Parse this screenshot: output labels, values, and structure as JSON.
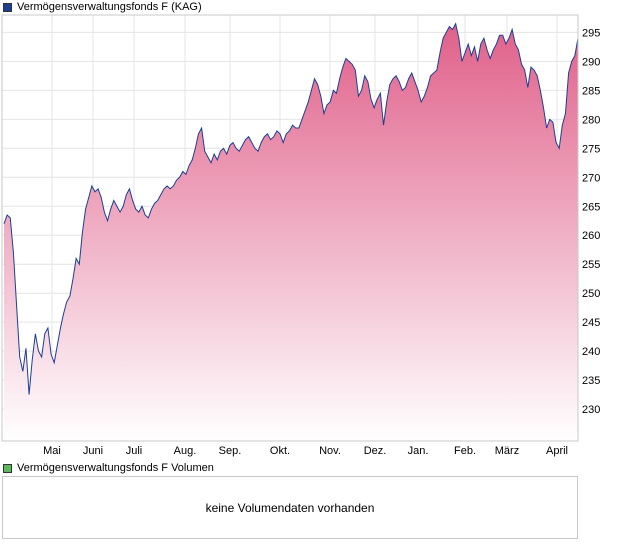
{
  "legend": {
    "price_label": "Vermögensverwaltungsfonds F (KAG)",
    "price_color": "#1c3f94",
    "volume_label": "Vermögensverwaltungsfonds F Volumen",
    "volume_color": "#5cb85c"
  },
  "volume_panel": {
    "message": "keine Volumendaten vorhanden"
  },
  "chart_data": {
    "type": "area",
    "ylim": [
      224.5,
      298
    ],
    "y_ticks": [
      230,
      235,
      240,
      245,
      250,
      255,
      260,
      265,
      270,
      275,
      280,
      285,
      290,
      295
    ],
    "x_ticks": [
      "Mai",
      "Juni",
      "Juli",
      "Aug.",
      "Sep.",
      "Okt.",
      "Nov.",
      "Dez.",
      "Jan.",
      "Feb.",
      "März",
      "April"
    ],
    "line_color": "#1c3f94",
    "fill_top_color": "#e0608a",
    "fill_bottom_color": "#ffffff",
    "grid": true,
    "series": [
      {
        "values": [
          262.0,
          263.5,
          263.0,
          257.0,
          248.0,
          239.0,
          236.5,
          240.5,
          232.5,
          238.5,
          243.0,
          240.0,
          239.0,
          243.0,
          244.0,
          239.5,
          238.0,
          241.0,
          244.0,
          246.5,
          248.5,
          249.5,
          252.5,
          256.0,
          255.0,
          260.5,
          264.5,
          266.5,
          268.5,
          267.5,
          268.0,
          266.5,
          264.0,
          262.5,
          264.5,
          266.0,
          265.0,
          264.0,
          265.0,
          267.0,
          268.0,
          266.0,
          264.5,
          264.0,
          265.0,
          263.5,
          263.0,
          264.5,
          265.5,
          266.0,
          267.0,
          268.0,
          268.5,
          268.0,
          268.5,
          269.5,
          270.0,
          271.0,
          270.5,
          272.0,
          273.0,
          275.0,
          277.5,
          278.5,
          274.5,
          273.5,
          272.5,
          274.0,
          273.0,
          274.5,
          275.0,
          274.0,
          275.5,
          276.0,
          275.0,
          274.5,
          275.5,
          276.5,
          277.0,
          276.0,
          275.0,
          274.5,
          276.0,
          277.0,
          277.5,
          276.5,
          277.0,
          278.0,
          277.5,
          276.0,
          277.5,
          278.0,
          279.0,
          278.5,
          278.5,
          280.0,
          281.5,
          283.0,
          285.0,
          287.0,
          286.0,
          284.0,
          281.0,
          282.5,
          283.0,
          285.0,
          284.5,
          287.0,
          289.0,
          290.5,
          290.0,
          289.5,
          288.5,
          284.0,
          285.0,
          287.5,
          286.5,
          283.5,
          282.0,
          283.5,
          284.5,
          279.0,
          283.0,
          286.0,
          287.0,
          287.5,
          286.5,
          285.0,
          285.5,
          287.0,
          288.0,
          286.5,
          285.0,
          283.0,
          284.0,
          285.5,
          287.5,
          288.0,
          288.5,
          291.5,
          294.0,
          295.0,
          296.0,
          295.5,
          296.5,
          294.0,
          290.0,
          291.5,
          293.0,
          291.0,
          292.5,
          290.0,
          293.0,
          294.0,
          292.0,
          290.5,
          292.0,
          293.0,
          294.5,
          294.5,
          293.0,
          294.0,
          295.5,
          293.0,
          292.0,
          289.5,
          288.5,
          285.5,
          289.0,
          288.5,
          287.5,
          285.0,
          282.0,
          278.5,
          280.0,
          279.5,
          276.0,
          275.0,
          279.0,
          281.0,
          288.0,
          290.0,
          291.0,
          294.0
        ]
      }
    ]
  }
}
